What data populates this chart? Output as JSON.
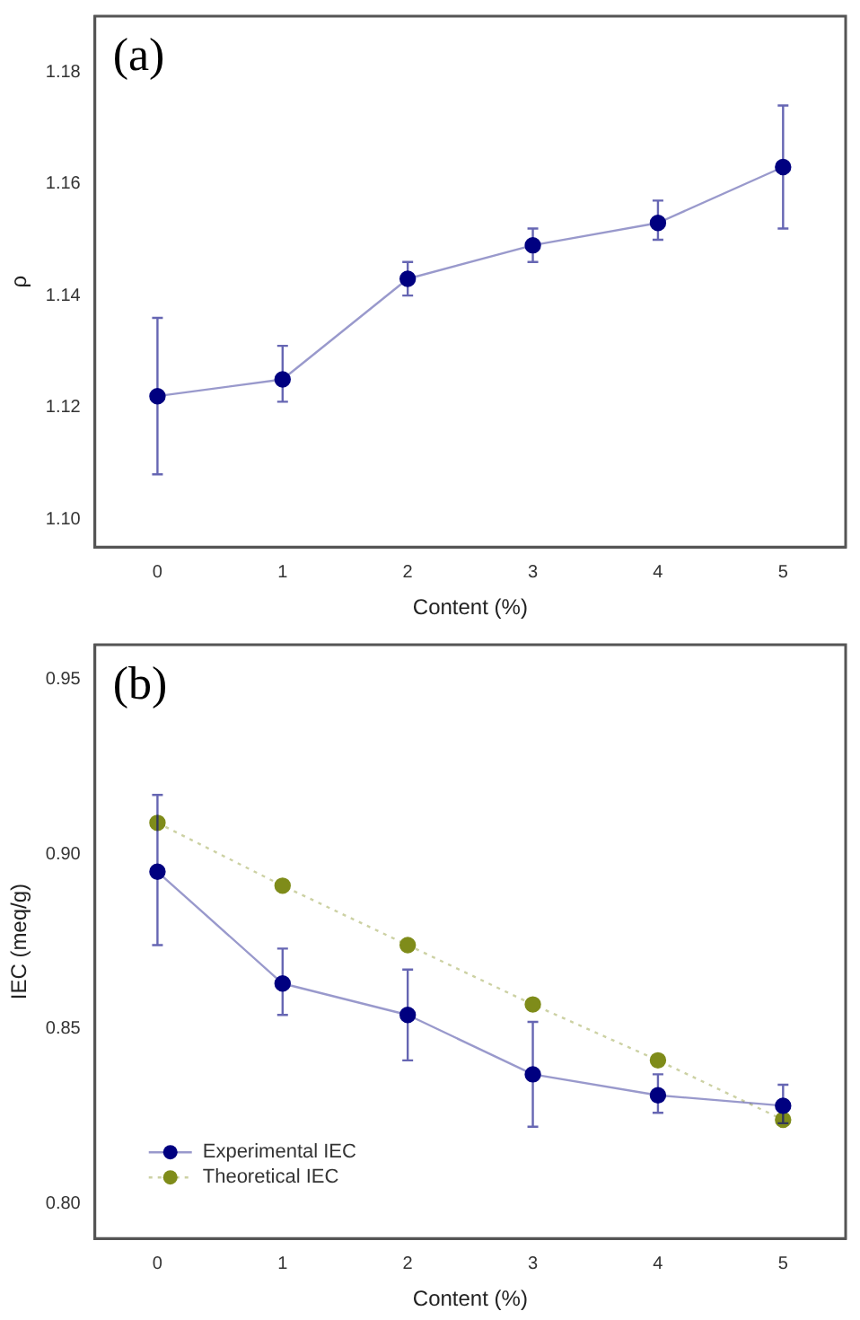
{
  "chart_data": [
    {
      "type": "line",
      "xlabel": "Content (%)",
      "ylabel": "ρ",
      "annotations": [
        "(a)"
      ],
      "x": [
        0,
        1,
        2,
        3,
        4,
        5
      ],
      "xlim": [
        -0.5,
        5.5
      ],
      "xticks": [
        0,
        1,
        2,
        3,
        4,
        5
      ],
      "ylim": [
        1.095,
        1.19
      ],
      "yticks": [
        {
          "value": 1.1,
          "label": "1.10"
        },
        1.12,
        1.14,
        1.16,
        1.18
      ],
      "grid": false,
      "marker": "circle",
      "series": [
        {
          "color": "#000080",
          "line_style": "solid",
          "values": [
            1.122,
            1.125,
            1.143,
            1.149,
            1.153,
            1.163
          ],
          "errors": [
            [
              1.108,
              1.136
            ],
            [
              1.121,
              1.131
            ],
            [
              1.14,
              1.146
            ],
            [
              1.146,
              1.152
            ],
            [
              1.15,
              1.157
            ],
            [
              1.152,
              1.174
            ]
          ]
        }
      ]
    },
    {
      "type": "line",
      "xlabel": "Content (%)",
      "ylabel": "IEC (meq/g)",
      "annotations": [
        "(b)"
      ],
      "x": [
        0,
        1,
        2,
        3,
        4,
        5
      ],
      "xlim": [
        -0.5,
        5.5
      ],
      "xticks": [
        0,
        1,
        2,
        3,
        4,
        5
      ],
      "ylim": [
        0.79,
        0.96
      ],
      "yticks": [
        {
          "value": 0.8,
          "label": "0.80"
        },
        0.85,
        {
          "value": 0.9,
          "label": "0.90"
        },
        0.95
      ],
      "grid": false,
      "marker": "circle",
      "legend": "bottom left",
      "series": [
        {
          "name": "Experimental IEC",
          "color": "#000080",
          "line_style": "solid",
          "values": [
            0.895,
            0.863,
            0.854,
            0.837,
            0.831,
            0.828
          ],
          "errors": [
            [
              0.874,
              0.917
            ],
            [
              0.854,
              0.873
            ],
            [
              0.841,
              0.867
            ],
            [
              0.822,
              0.852
            ],
            [
              0.826,
              0.837
            ],
            [
              0.823,
              0.834
            ]
          ]
        },
        {
          "name": "Theoretical IEC",
          "color": "#7f8c1a",
          "line_style": "dotted",
          "values": [
            0.909,
            0.891,
            0.874,
            0.857,
            0.841,
            0.824
          ]
        }
      ]
    }
  ]
}
